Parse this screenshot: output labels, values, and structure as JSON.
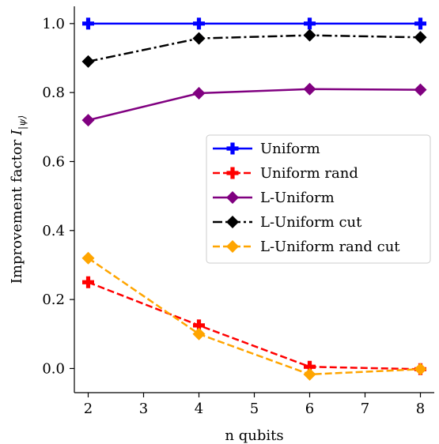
{
  "chart_data": {
    "type": "line",
    "xlabel": "n qubits",
    "ylabel_main": "Improvement factor ",
    "ylabel_symbol": "I",
    "ylabel_subscript": "|ψ⟩",
    "xlim": [
      1.75,
      8.25
    ],
    "ylim": [
      -0.07,
      1.05
    ],
    "xticks": [
      2,
      3,
      4,
      5,
      6,
      7,
      8
    ],
    "yticks": [
      0.0,
      0.2,
      0.4,
      0.6,
      0.8,
      1.0
    ],
    "ytick_labels": [
      "0.0",
      "0.2",
      "0.4",
      "0.6",
      "0.8",
      "1.0"
    ],
    "grid": false,
    "legend_position": "center-right",
    "series": [
      {
        "name": "Uniform",
        "color": "#0000ff",
        "dash": "solid",
        "marker": "plus",
        "x": [
          2,
          4,
          6,
          8
        ],
        "y": [
          1.0,
          1.0,
          1.0,
          1.0
        ]
      },
      {
        "name": "Uniform rand",
        "color": "#ff0000",
        "dash": "dashed",
        "marker": "plus",
        "x": [
          2,
          4,
          6,
          8
        ],
        "y": [
          0.25,
          0.125,
          0.005,
          -0.002
        ]
      },
      {
        "name": "L-Uniform",
        "color": "#800080",
        "dash": "solid",
        "marker": "diamond",
        "x": [
          2,
          4,
          6,
          8
        ],
        "y": [
          0.72,
          0.798,
          0.81,
          0.808
        ]
      },
      {
        "name": "L-Uniform cut",
        "color": "#000000",
        "dash": "dashdot",
        "marker": "diamond",
        "x": [
          2,
          4,
          6,
          8
        ],
        "y": [
          0.89,
          0.957,
          0.966,
          0.96
        ]
      },
      {
        "name": "L-Uniform rand cut",
        "color": "#ffa500",
        "dash": "dashed",
        "marker": "diamond",
        "x": [
          2,
          4,
          6,
          8
        ],
        "y": [
          0.32,
          0.1,
          -0.017,
          -0.002
        ]
      }
    ]
  }
}
